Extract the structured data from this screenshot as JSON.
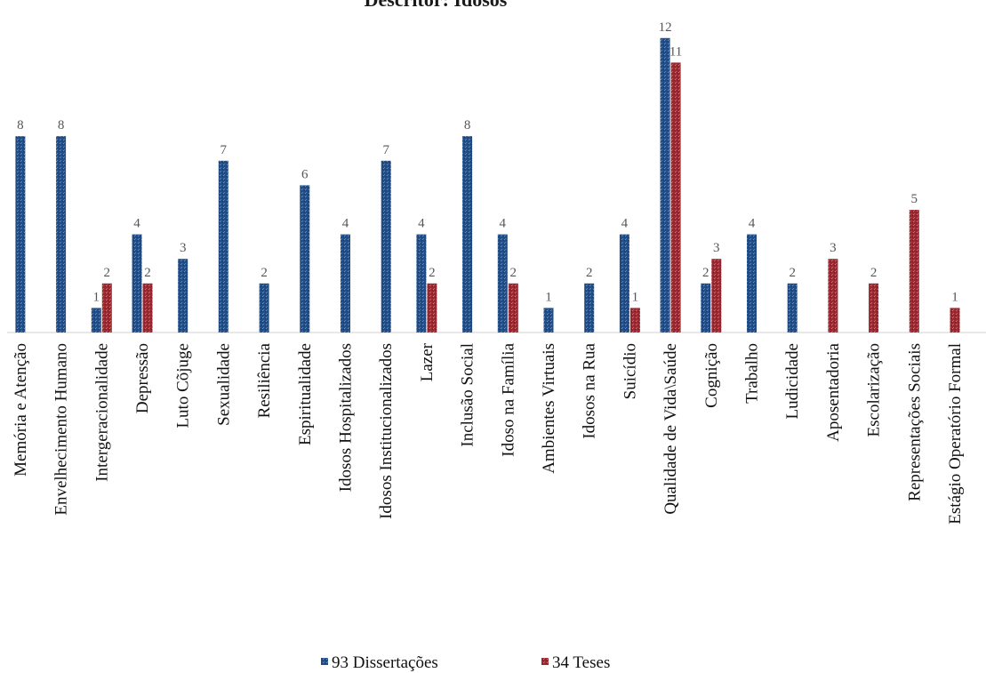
{
  "chart_data": {
    "type": "bar",
    "title": "Descritor: Idosos",
    "xlabel": "",
    "ylabel": "",
    "ylim": [
      0,
      13
    ],
    "grid": false,
    "legend": "bottom",
    "categories": [
      "Memória e Atenção",
      "Envelhecimento Humano",
      "Intergeracionalidade",
      "Depressão",
      "Luto Cõjuge",
      "Sexualidade",
      "Resiliência",
      "Espiritualidade",
      "Idosos Hospitalizados",
      "Idosos Institucionalizados",
      "Lazer",
      "Inclusão Social",
      "Idoso na Família",
      "Ambientes Virtuais",
      "Idosos na Rua",
      "Suicídio",
      "Qualidade de Vida\\Saúde",
      "Cognição",
      "Trabalho",
      "Ludicidade",
      "Aposentadoria",
      "Escolarização",
      "Representações Sociais",
      "Estágio Operatório Formal"
    ],
    "series": [
      {
        "name": "93 Dissertações",
        "color": "#1f4e8c",
        "values": [
          8,
          8,
          1,
          4,
          3,
          7,
          2,
          6,
          4,
          7,
          4,
          8,
          4,
          1,
          2,
          4,
          12,
          2,
          4,
          2,
          null,
          null,
          null,
          null
        ]
      },
      {
        "name": "34 Teses",
        "color": "#a02630",
        "values": [
          null,
          null,
          2,
          2,
          null,
          null,
          null,
          null,
          null,
          null,
          2,
          null,
          2,
          null,
          null,
          1,
          11,
          3,
          null,
          null,
          3,
          2,
          5,
          1
        ]
      }
    ]
  }
}
